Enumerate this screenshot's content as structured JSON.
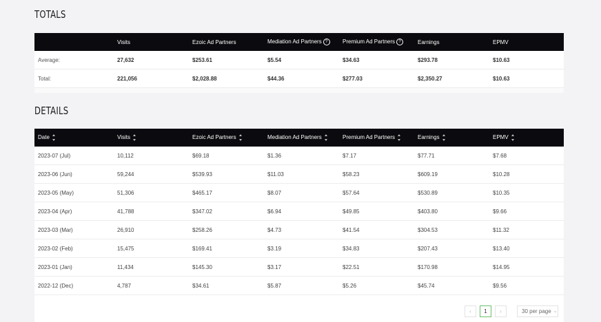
{
  "totals": {
    "title": "TOTALS",
    "headers": [
      "",
      "Visits",
      "Ezoic Ad Partners",
      "Mediation Ad Partners",
      "Premium Ad Partners",
      "Earnings",
      "EPMV"
    ],
    "rows": [
      [
        "Average:",
        "27,632",
        "$253.61",
        "$5.54",
        "$34.63",
        "$293.78",
        "$10.63"
      ],
      [
        "Total:",
        "221,056",
        "$2,028.88",
        "$44.36",
        "$277.03",
        "$2,350.27",
        "$10.63"
      ]
    ]
  },
  "details": {
    "title": "DETAILS",
    "headers": [
      "Date",
      "Visits",
      "Ezoic Ad Partners",
      "Mediation Ad Partners",
      "Premium Ad Partners",
      "Earnings",
      "EPMV"
    ],
    "rows": [
      [
        "2023-07 (Jul)",
        "10,112",
        "$69.18",
        "$1.36",
        "$7.17",
        "$77.71",
        "$7.68"
      ],
      [
        "2023-06 (Jun)",
        "59,244",
        "$539.93",
        "$11.03",
        "$58.23",
        "$609.19",
        "$10.28"
      ],
      [
        "2023-05 (May)",
        "51,306",
        "$465.17",
        "$8.07",
        "$57.64",
        "$530.89",
        "$10.35"
      ],
      [
        "2023-04 (Apr)",
        "41,788",
        "$347.02",
        "$6.94",
        "$49.85",
        "$403.80",
        "$9.66"
      ],
      [
        "2023-03 (Mar)",
        "26,910",
        "$258.26",
        "$4.73",
        "$41.54",
        "$304.53",
        "$11.32"
      ],
      [
        "2023-02 (Feb)",
        "15,475",
        "$169.41",
        "$3.19",
        "$34.83",
        "$207.43",
        "$13.40"
      ],
      [
        "2023-01 (Jan)",
        "11,434",
        "$145.30",
        "$3.17",
        "$22.51",
        "$170.98",
        "$14.95"
      ],
      [
        "2022-12 (Dec)",
        "4,787",
        "$34.61",
        "$5.87",
        "$5.26",
        "$45.74",
        "$9.56"
      ]
    ]
  },
  "pagination": {
    "prev": "‹",
    "current_page": "1",
    "next": "›",
    "per_page": "30 per page"
  }
}
